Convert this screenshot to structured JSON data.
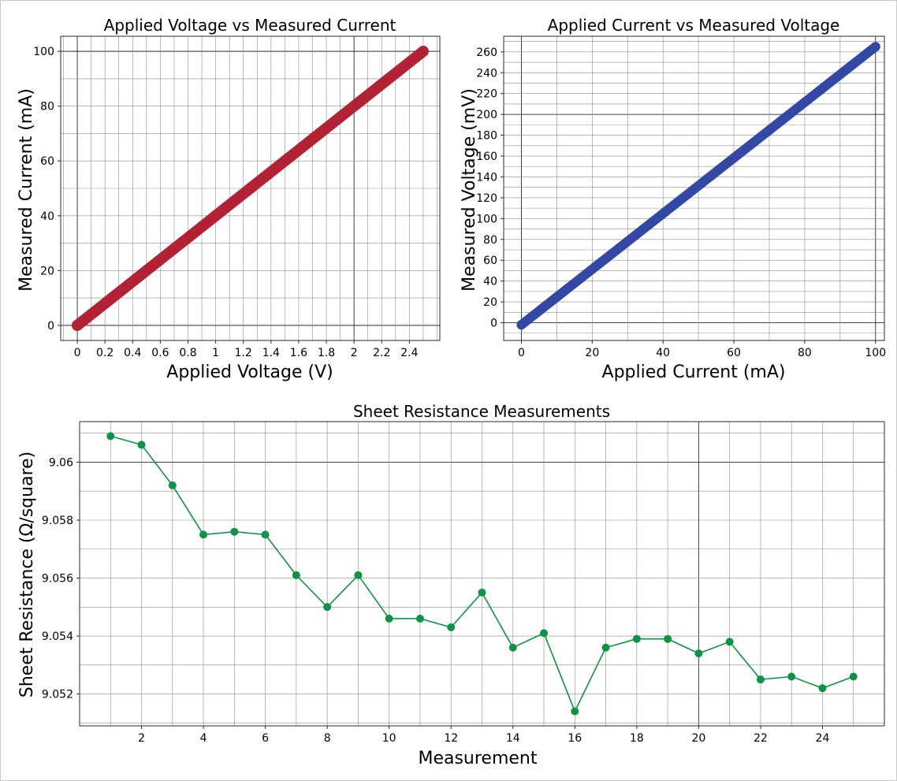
{
  "chart_data": [
    {
      "type": "scatter",
      "title": "Applied Voltage vs Measured Current",
      "xlabel": "Applied Voltage (V)",
      "ylabel": "Measured Current (mA)",
      "xlim": [
        -0.12,
        2.62
      ],
      "ylim": [
        -5.5,
        105.5
      ],
      "xticks": [
        0,
        0.2,
        0.4,
        0.6,
        0.8,
        1,
        1.2,
        1.4,
        1.6,
        1.8,
        2,
        2.2,
        2.4
      ],
      "xtick_labels": [
        "0",
        "0.2",
        "0.4",
        "0.6",
        "0.8",
        "1",
        "1.2",
        "1.4",
        "1.6",
        "1.8",
        "2",
        "2.2",
        "2.4"
      ],
      "yticks": [
        0,
        20,
        40,
        60,
        80,
        100
      ],
      "ytick_labels": [
        "0",
        "20",
        "40",
        "60",
        "80",
        "100"
      ],
      "major_x": [
        0,
        2
      ],
      "major_y": [
        0,
        100
      ],
      "grid": true,
      "color": "#b22234",
      "series": [
        {
          "x": [
            0,
            0.25,
            0.5,
            0.75,
            1.0,
            1.25,
            1.5,
            1.75,
            2.0,
            2.25,
            2.5
          ],
          "y": [
            0,
            10,
            20,
            30,
            40,
            50,
            60,
            70,
            80,
            90,
            100
          ]
        }
      ]
    },
    {
      "type": "scatter",
      "title": "Applied Current vs Measured Voltage",
      "xlabel": "Applied Current (mA)",
      "ylabel": "Measured Voltage (mV)",
      "xlim": [
        -5,
        102.5
      ],
      "ylim": [
        -17,
        275
      ],
      "xticks": [
        0,
        20,
        40,
        60,
        80,
        100
      ],
      "xtick_labels": [
        "0",
        "20",
        "40",
        "60",
        "80",
        "100"
      ],
      "yticks": [
        0,
        20,
        40,
        60,
        80,
        100,
        120,
        140,
        160,
        180,
        200,
        220,
        240,
        260
      ],
      "ytick_labels": [
        "0",
        "20",
        "40",
        "60",
        "80",
        "100",
        "120",
        "140",
        "160",
        "180",
        "200",
        "220",
        "240",
        "260"
      ],
      "major_x": [
        0,
        100
      ],
      "major_y": [
        0,
        200
      ],
      "grid": true,
      "color": "#3347a4",
      "series": [
        {
          "x": [
            0,
            10,
            20,
            30,
            40,
            50,
            60,
            70,
            80,
            90,
            100
          ],
          "y": [
            -2,
            24.7,
            51.4,
            78.1,
            104.8,
            131.5,
            158.2,
            184.9,
            211.6,
            238.3,
            265
          ]
        }
      ]
    },
    {
      "type": "line",
      "title": "Sheet Resistance Measurements",
      "xlabel": "Measurement",
      "ylabel": "Sheet Resistance (Ω/square)",
      "xlim": [
        0,
        26
      ],
      "ylim": [
        9.0509,
        9.0614
      ],
      "xticks": [
        2,
        4,
        6,
        8,
        10,
        12,
        14,
        16,
        18,
        20,
        22,
        24
      ],
      "xtick_labels": [
        "2",
        "4",
        "6",
        "8",
        "10",
        "12",
        "14",
        "16",
        "18",
        "20",
        "22",
        "24"
      ],
      "yticks": [
        9.052,
        9.054,
        9.056,
        9.058,
        9.06
      ],
      "ytick_labels": [
        "9.052",
        "9.054",
        "9.056",
        "9.058",
        "9.06"
      ],
      "major_x": [
        20
      ],
      "major_y": [
        9.06
      ],
      "grid": true,
      "color": "#0f9246",
      "series": [
        {
          "x": [
            1,
            2,
            3,
            4,
            5,
            6,
            7,
            8,
            9,
            10,
            11,
            12,
            13,
            14,
            15,
            16,
            17,
            18,
            19,
            20,
            21,
            22,
            23,
            24,
            25
          ],
          "y": [
            9.0609,
            9.0606,
            9.0592,
            9.0575,
            9.0576,
            9.0575,
            9.0561,
            9.055,
            9.0561,
            9.0546,
            9.0546,
            9.0543,
            9.0555,
            9.0536,
            9.0541,
            9.0514,
            9.0536,
            9.0539,
            9.0539,
            9.0534,
            9.0538,
            9.0525,
            9.0526,
            9.0522,
            9.0526
          ]
        }
      ]
    }
  ]
}
